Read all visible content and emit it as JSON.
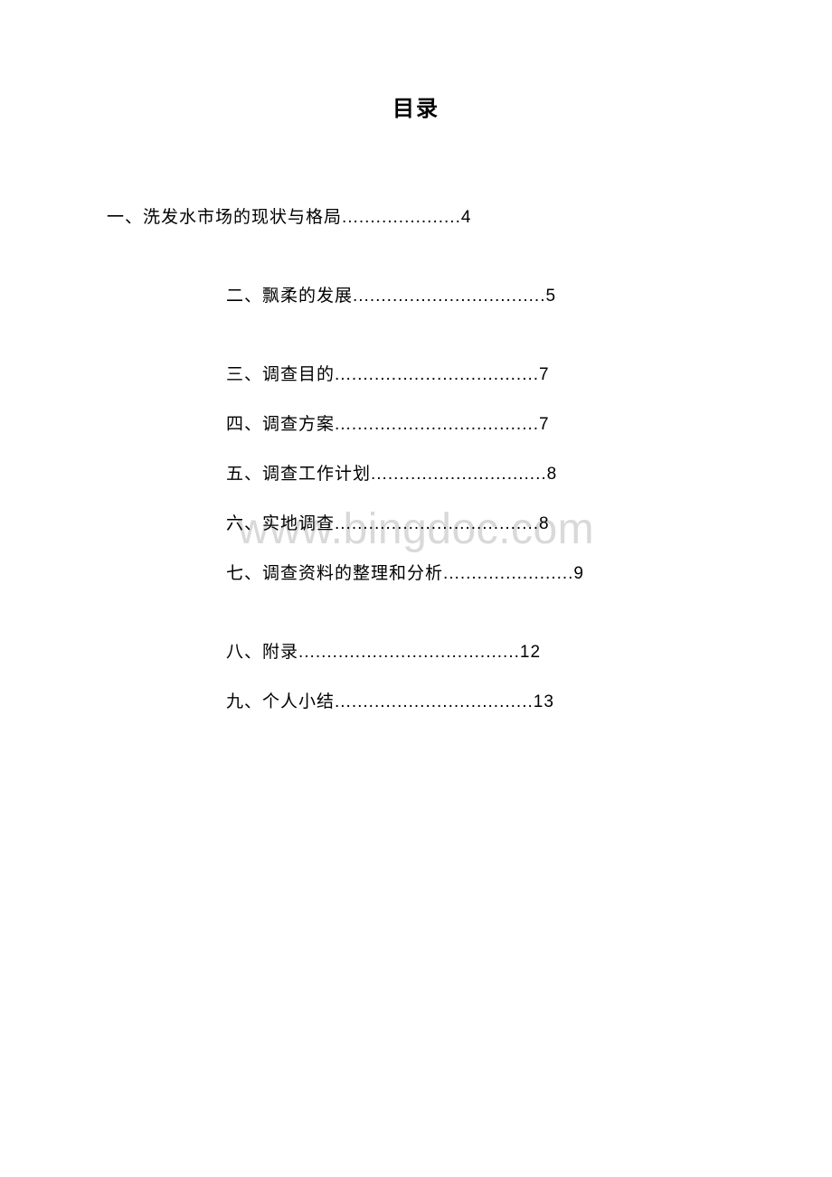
{
  "title": "目录",
  "watermark": "www.bingdoc.com",
  "toc": {
    "item1": "一、洗发水市场的现状与格局.....................4",
    "items": [
      "二、飘柔的发展..................................5",
      "三、调查目的....................................7",
      "四、调查方案....................................7",
      "五、调查工作计划...............................8",
      "六、实地调查....................................8",
      "七、调查资料的整理和分析.......................9",
      "八、附录.......................................12",
      "九、个人小结...................................13"
    ]
  },
  "colors": {
    "background": "#ffffff",
    "text": "#000000",
    "watermark": "#d9d9d9"
  },
  "fonts": {
    "title_size": 24,
    "body_size": 19,
    "watermark_size": 48
  }
}
